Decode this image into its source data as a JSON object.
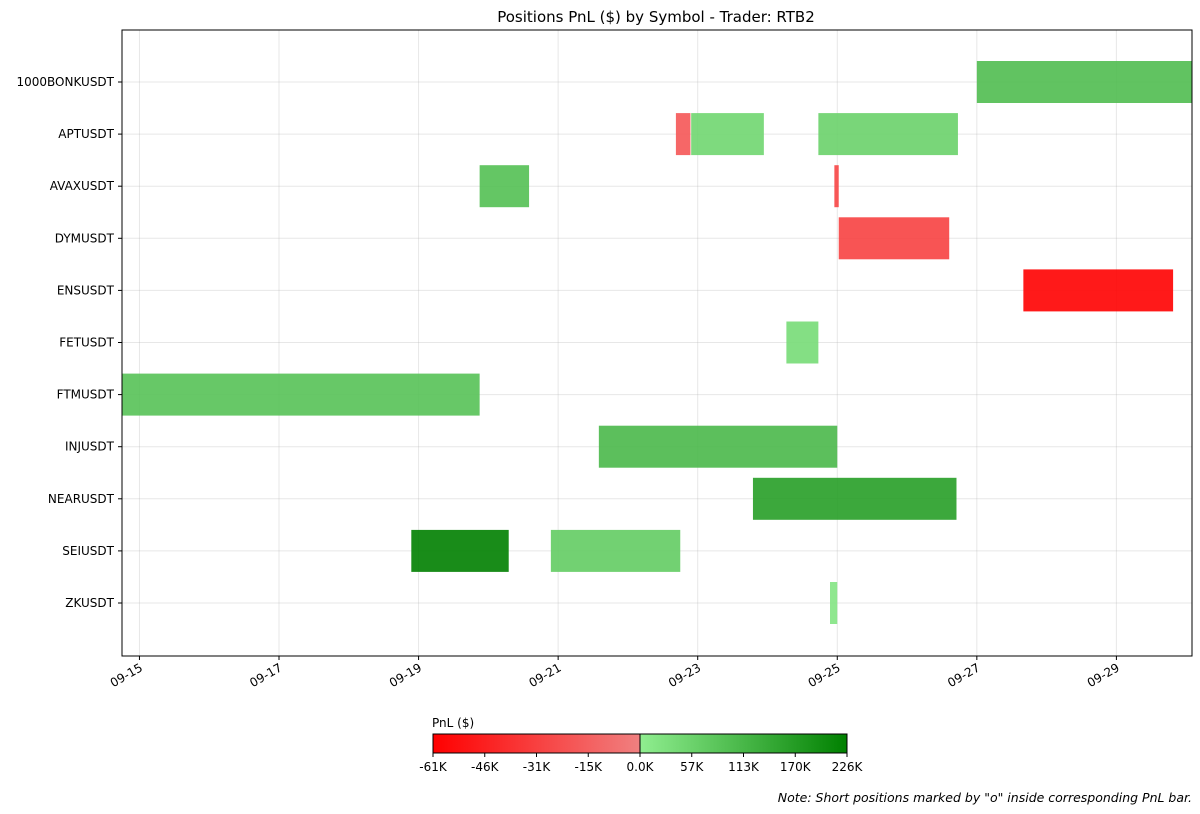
{
  "chart_data": {
    "type": "gantt",
    "title": "Positions PnL ($) by Symbol - Trader: RTB2",
    "xlabel": "",
    "ylabel": "",
    "grid": true,
    "x_range": [
      "2024-09-14T18:00",
      "2024-09-30T02:00"
    ],
    "x_ticks": [
      {
        "date": "2024-09-15",
        "label": "09-15"
      },
      {
        "date": "2024-09-17",
        "label": "09-17"
      },
      {
        "date": "2024-09-19",
        "label": "09-19"
      },
      {
        "date": "2024-09-21",
        "label": "09-21"
      },
      {
        "date": "2024-09-23",
        "label": "09-23"
      },
      {
        "date": "2024-09-25",
        "label": "09-25"
      },
      {
        "date": "2024-09-27",
        "label": "09-27"
      },
      {
        "date": "2024-09-29",
        "label": "09-29"
      }
    ],
    "categories": [
      "1000BONKUSDT",
      "APTUSDT",
      "AVAXUSDT",
      "DYMUSDT",
      "ENSUSDT",
      "FETUSDT",
      "FTMUSDT",
      "INJUSDT",
      "NEARUSDT",
      "SEIUSDT",
      "ZKUSDT"
    ],
    "positions": [
      {
        "symbol": "1000BONKUSDT",
        "start": "2024-09-27T00:00",
        "end": "2024-09-30T02:00",
        "pnl": 100000
      },
      {
        "symbol": "APTUSDT",
        "start": "2024-09-22T16:30",
        "end": "2024-09-22T21:30",
        "pnl": -20000
      },
      {
        "symbol": "APTUSDT",
        "start": "2024-09-22T21:45",
        "end": "2024-09-23T22:45",
        "pnl": 50000
      },
      {
        "symbol": "APTUSDT",
        "start": "2024-09-24T17:30",
        "end": "2024-09-26T17:30",
        "pnl": 60000
      },
      {
        "symbol": "AVAXUSDT",
        "start": "2024-09-19T21:00",
        "end": "2024-09-20T14:00",
        "pnl": 95000
      },
      {
        "symbol": "AVAXUSDT",
        "start": "2024-09-24T23:00",
        "end": "2024-09-25T00:30",
        "pnl": -28000
      },
      {
        "symbol": "DYMUSDT",
        "start": "2024-09-25T00:30",
        "end": "2024-09-26T14:30",
        "pnl": -30000
      },
      {
        "symbol": "ENSUSDT",
        "start": "2024-09-27T16:00",
        "end": "2024-09-29T19:30",
        "pnl": -61000
      },
      {
        "symbol": "FETUSDT",
        "start": "2024-09-24T06:30",
        "end": "2024-09-24T17:30",
        "pnl": 40000
      },
      {
        "symbol": "FTMUSDT",
        "start": "2024-09-14T18:00",
        "end": "2024-09-19T21:00",
        "pnl": 90000
      },
      {
        "symbol": "INJUSDT",
        "start": "2024-09-21T14:00",
        "end": "2024-09-25T00:00",
        "pnl": 110000
      },
      {
        "symbol": "NEARUSDT",
        "start": "2024-09-23T19:00",
        "end": "2024-09-26T17:00",
        "pnl": 165000
      },
      {
        "symbol": "SEIUSDT",
        "start": "2024-09-18T21:30",
        "end": "2024-09-20T07:00",
        "pnl": 226000
      },
      {
        "symbol": "SEIUSDT",
        "start": "2024-09-20T21:30",
        "end": "2024-09-22T18:00",
        "pnl": 70000
      },
      {
        "symbol": "ZKUSDT",
        "start": "2024-09-24T21:30",
        "end": "2024-09-25T00:00",
        "pnl": 20000
      }
    ],
    "colorbar": {
      "label": "PnL ($)",
      "min": -61000,
      "max": 226000,
      "tick_labels": [
        "-61K",
        "-46K",
        "-31K",
        "-15K",
        "0.0K",
        "57K",
        "113K",
        "170K",
        "226K"
      ],
      "negative_colors": [
        "#ff0000",
        "#f08080"
      ],
      "positive_colors": [
        "#90ee90",
        "#008000"
      ]
    },
    "note": "Note: Short positions marked by \"o\" inside corresponding PnL bar."
  }
}
